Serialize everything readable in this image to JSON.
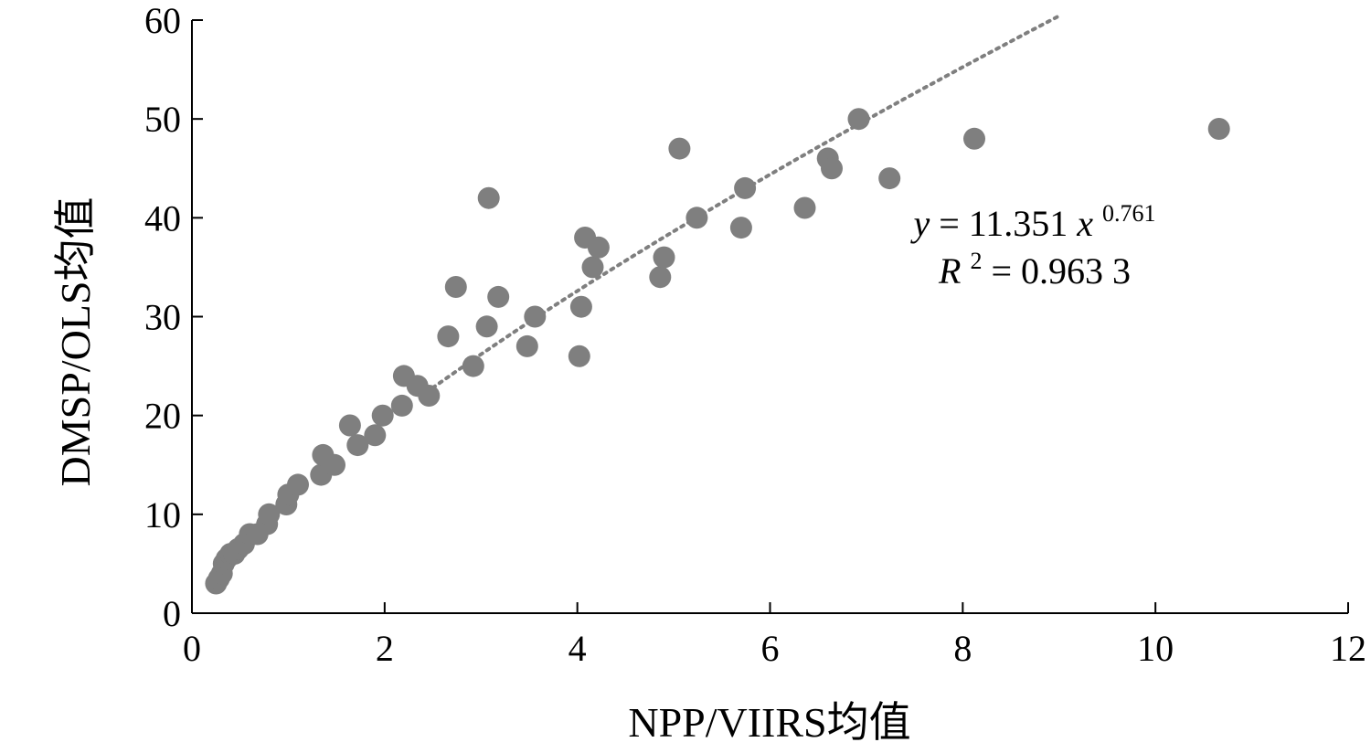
{
  "chart_data": {
    "type": "scatter",
    "title": "",
    "xlabel": "NPP/VIIRS均值",
    "ylabel": "DMSP/OLS均值",
    "xlim": [
      0,
      12
    ],
    "ylim": [
      0,
      60
    ],
    "xticks": [
      0,
      2,
      4,
      6,
      8,
      10,
      12
    ],
    "yticks": [
      0,
      10,
      20,
      30,
      40,
      50,
      60
    ],
    "grid": false,
    "colors": {
      "points": "#7f7f7f",
      "trendline": "#7f7f7f",
      "axis": "#000000"
    },
    "series": [
      {
        "x": [
          0.25,
          0.28,
          0.31,
          0.33,
          0.36,
          0.4,
          0.44,
          0.48,
          0.54,
          0.6,
          0.68,
          0.78,
          0.8,
          0.98,
          1.0,
          1.1,
          1.34,
          1.36,
          1.48,
          1.64,
          1.72,
          1.9,
          1.98,
          2.18,
          2.2,
          2.34,
          2.46,
          2.66,
          2.74,
          2.92,
          3.06,
          3.08,
          3.18,
          3.48,
          3.56,
          4.02,
          4.04,
          4.08,
          4.16,
          4.22,
          4.86,
          4.9,
          5.06,
          5.24,
          5.7,
          5.74,
          6.36,
          6.6,
          6.64,
          6.92,
          7.24,
          8.12,
          10.66
        ],
        "y": [
          3,
          3.5,
          4,
          5,
          5.5,
          6,
          6,
          6.5,
          7,
          8,
          8,
          9,
          10,
          11,
          12,
          13,
          14,
          16,
          15,
          19,
          17,
          18,
          20,
          21,
          24,
          23,
          22,
          28,
          33,
          25,
          29,
          42,
          32,
          27,
          30,
          26,
          31,
          38,
          35,
          37,
          34,
          36,
          47,
          40,
          39,
          43,
          41,
          46,
          45,
          50,
          44,
          48,
          49
        ]
      }
    ],
    "trendline": {
      "type": "power",
      "coefficient": 11.351,
      "exponent": 0.761,
      "x_range": [
        2.5,
        9.0
      ]
    },
    "annotation": {
      "equation_lhs": "y",
      "equation_eq": " = 11.351",
      "equation_var": "x",
      "equation_exp": "0.761",
      "r2_var": "R",
      "r2_sup": "2",
      "r2_value": " = 0.963 3"
    }
  }
}
